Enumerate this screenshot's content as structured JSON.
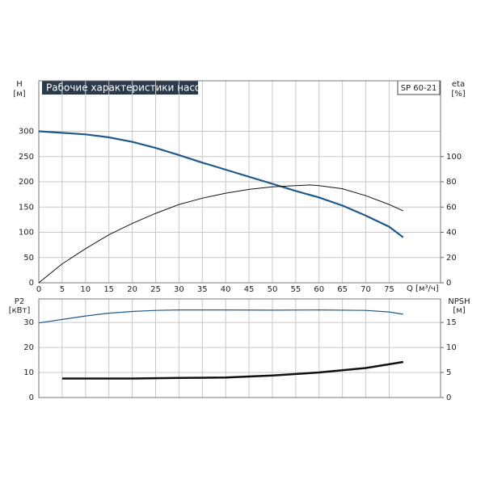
{
  "chart_data": [
    {
      "type": "line",
      "title": "Рабочие характеристики насоса",
      "model": "SP 60-21",
      "ylabel": "H",
      "yunit": "[м]",
      "y2label": "eta",
      "y2unit": "[%]",
      "xlabel": "Q [м³/ч]",
      "xlim": [
        0,
        86
      ],
      "xticks": [
        0,
        5,
        10,
        15,
        20,
        25,
        30,
        35,
        40,
        45,
        50,
        55,
        60,
        65,
        70,
        75
      ],
      "ylim": [
        0,
        400
      ],
      "yticks": [
        0,
        50,
        100,
        150,
        200,
        250,
        300
      ],
      "y2lim": [
        0,
        160
      ],
      "y2ticks": [
        0,
        20,
        40,
        60,
        80,
        100
      ],
      "grid": true,
      "series": [
        {
          "name": "H",
          "color": "#1f5a8c",
          "x": [
            0,
            5,
            10,
            15,
            20,
            25,
            30,
            35,
            40,
            45,
            50,
            55,
            60,
            65,
            70,
            75,
            78
          ],
          "values": [
            300,
            297,
            294,
            288,
            279,
            267,
            253,
            238,
            224,
            210,
            196,
            182,
            169,
            153,
            133,
            111,
            90
          ]
        },
        {
          "name": "eta",
          "color": "#111111",
          "axis": "y2",
          "x": [
            0,
            5,
            10,
            15,
            20,
            25,
            30,
            35,
            40,
            45,
            50,
            55,
            58,
            60,
            65,
            70,
            75,
            78
          ],
          "values": [
            0,
            15,
            27,
            38,
            47,
            55,
            62,
            67,
            71,
            74,
            76,
            77,
            77.5,
            77,
            74.5,
            69,
            62,
            57
          ]
        }
      ]
    },
    {
      "type": "line",
      "ylabel": "P2",
      "yunit": "[кВт]",
      "y2label": "NPSH",
      "y2unit": "[м]",
      "xlim": [
        0,
        86
      ],
      "xticks": [
        0,
        5,
        10,
        15,
        20,
        25,
        30,
        35,
        40,
        45,
        50,
        55,
        60,
        65,
        70,
        75
      ],
      "ylim": [
        0,
        39.4
      ],
      "yticks": [
        0,
        10,
        20,
        30
      ],
      "y2lim": [
        0,
        19.7
      ],
      "y2ticks": [
        0,
        5,
        10,
        15
      ],
      "grid": true,
      "series": [
        {
          "name": "P2",
          "color": "#1f5a8c",
          "x": [
            0,
            5,
            10,
            15,
            20,
            25,
            30,
            40,
            50,
            60,
            70,
            75,
            78
          ],
          "values": [
            29.8,
            31.2,
            32.6,
            33.7,
            34.4,
            34.8,
            35,
            35,
            34.9,
            35,
            34.8,
            34.2,
            33.3
          ]
        },
        {
          "name": "NPSH",
          "color": "#111111",
          "axis": "y2",
          "x": [
            5,
            20,
            30,
            40,
            50,
            60,
            70,
            78
          ],
          "values": [
            3.8,
            3.8,
            3.9,
            4.0,
            4.4,
            5.0,
            5.9,
            7.1
          ]
        }
      ]
    }
  ]
}
